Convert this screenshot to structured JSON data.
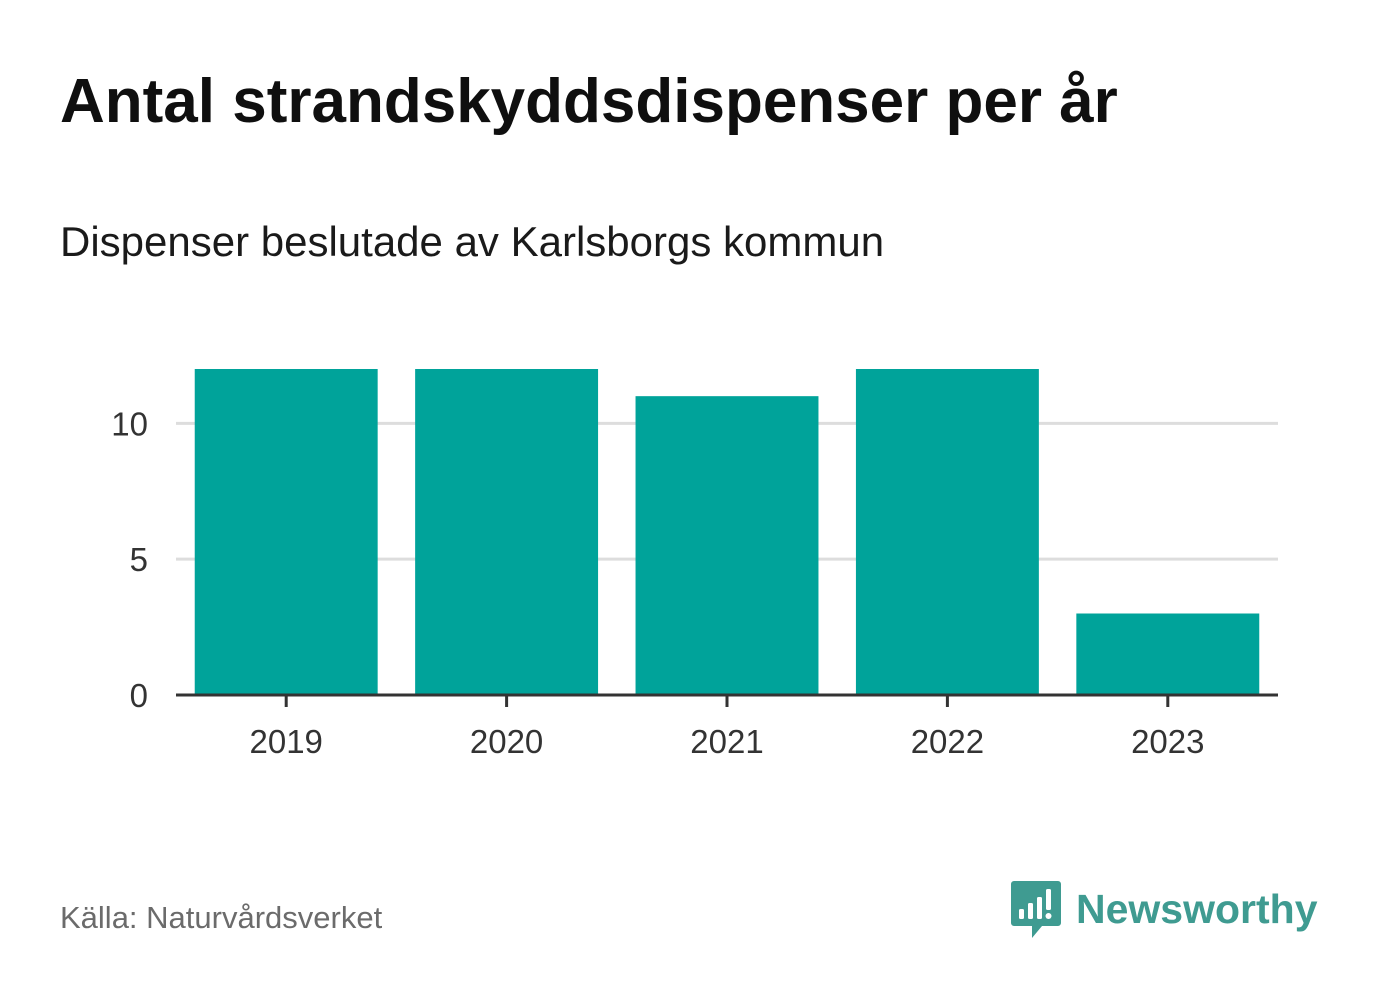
{
  "header": {
    "title": "Antal strandskyddsdispenser per år",
    "subtitle": "Dispenser beslutade av Karlsborgs kommun"
  },
  "footer": {
    "source": "Källa: Naturvårdsverket",
    "brand": "Newsworthy"
  },
  "colors": {
    "bar": "#00a39a",
    "grid": "#dddddd",
    "axis": "#333333",
    "brand": "#3f9b91"
  },
  "chart_data": {
    "type": "bar",
    "title": "Antal strandskyddsdispenser per år",
    "subtitle": "Dispenser beslutade av Karlsborgs kommun",
    "categories": [
      "2019",
      "2020",
      "2021",
      "2022",
      "2023"
    ],
    "values": [
      12,
      12,
      11,
      12,
      3
    ],
    "xlabel": "",
    "ylabel": "",
    "ylim": [
      0,
      12
    ],
    "yticks": [
      0,
      5,
      10
    ],
    "grid": true,
    "legend": "none"
  }
}
